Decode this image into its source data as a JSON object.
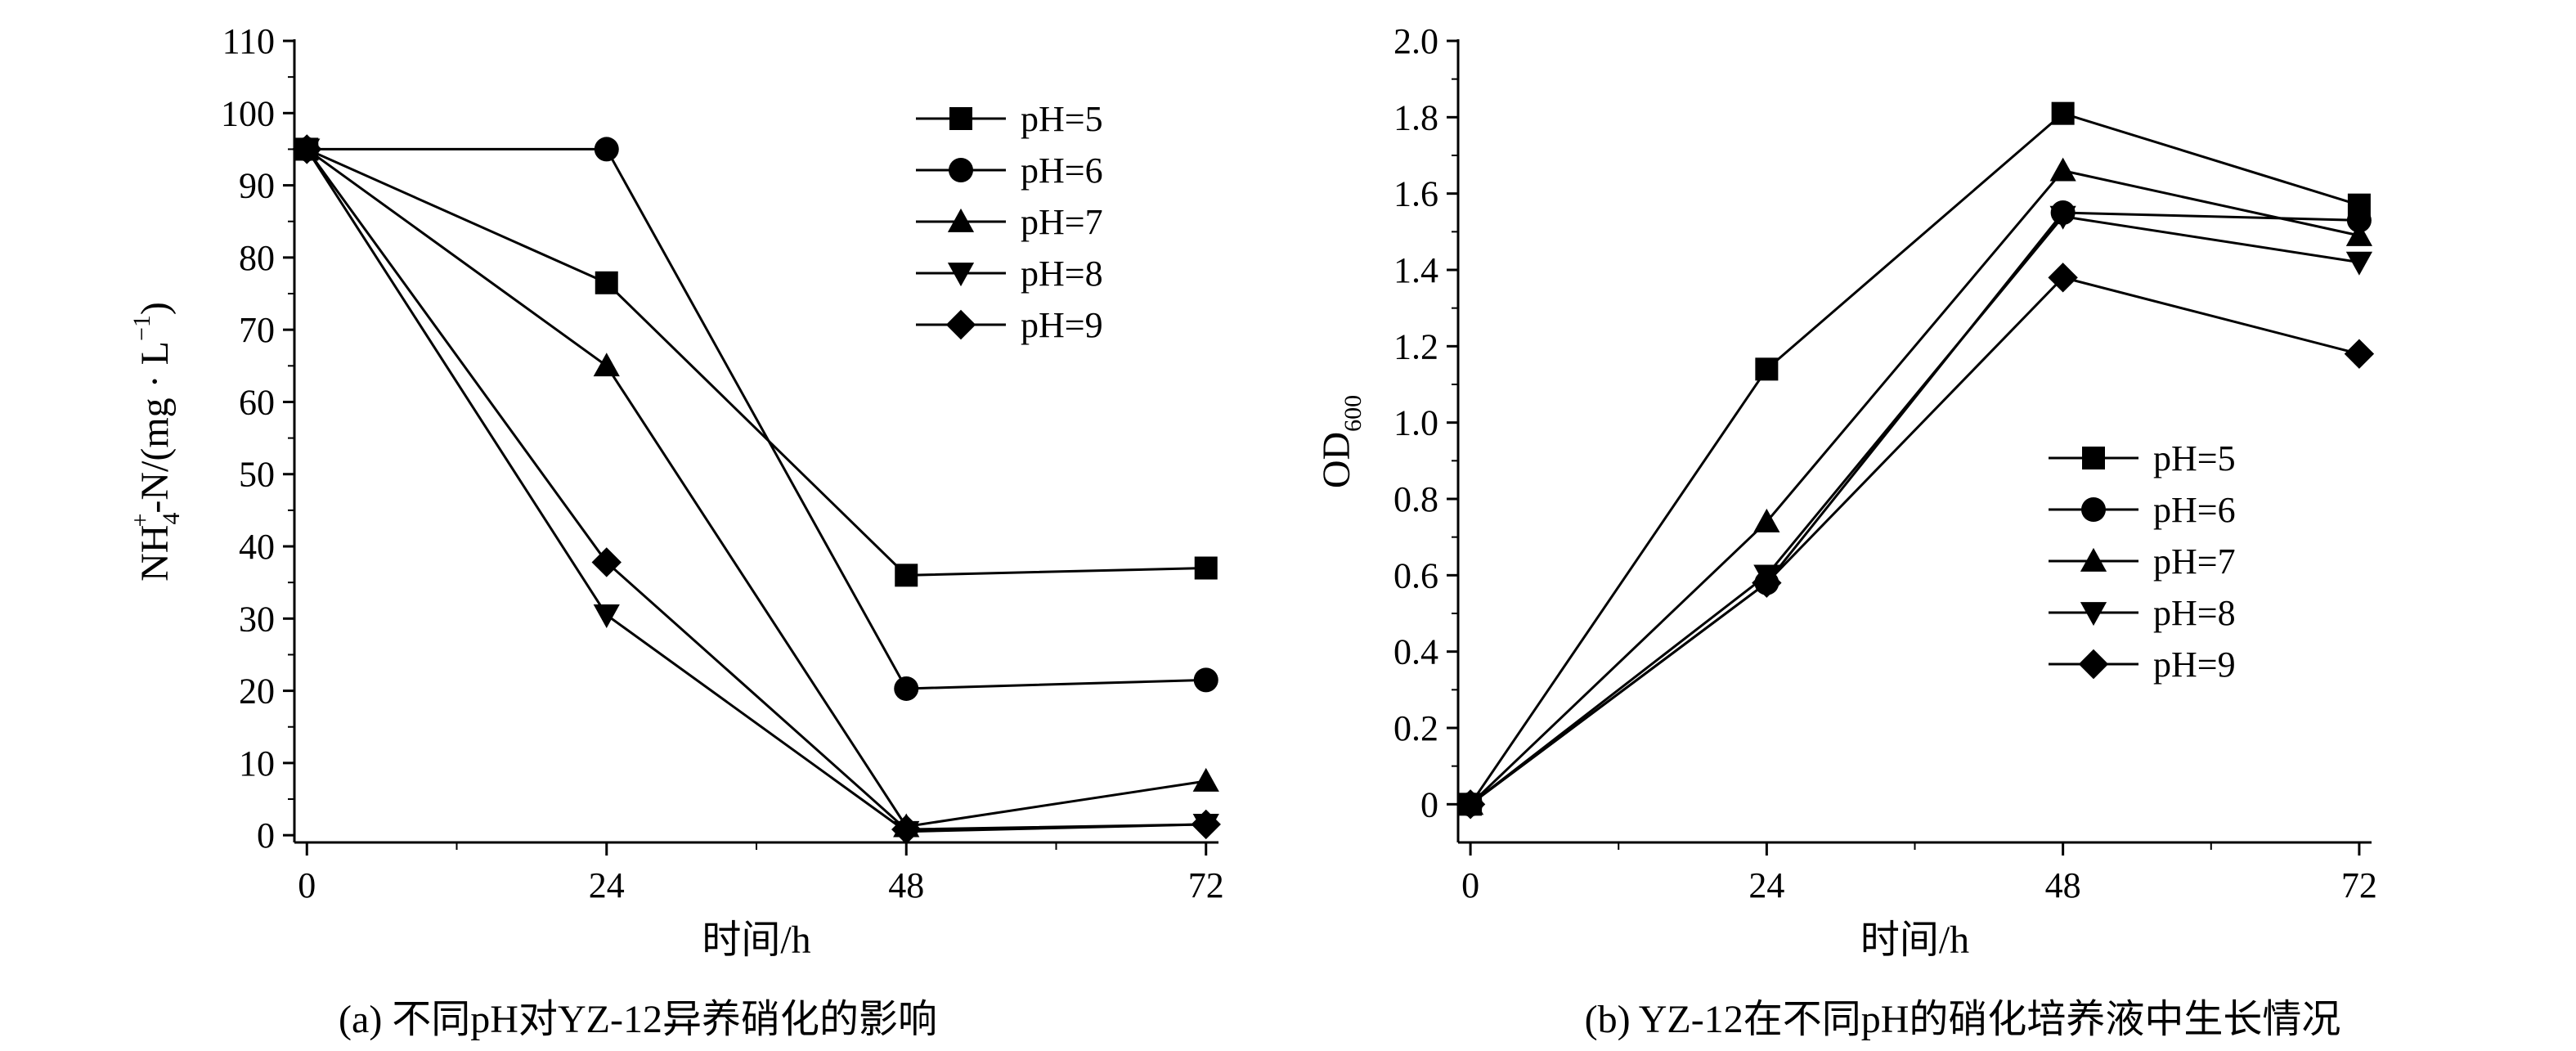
{
  "chart_data": [
    {
      "id": "a",
      "type": "line",
      "caption": "(a) 不同pH对YZ-12异养硝化的影响",
      "xlabel": "时间/h",
      "ylabel_main": "NH",
      "ylabel_sub": "4",
      "ylabel_sup": "+",
      "ylabel_rest": "-N/(mg · L",
      "ylabel_sup2": "−1",
      "ylabel_end": ")",
      "xlim": [
        -1,
        73
      ],
      "ylim": [
        -1,
        110
      ],
      "xticks": [
        0,
        24,
        48,
        72
      ],
      "xtick_labels": [
        "0",
        "24",
        "48",
        "72"
      ],
      "yticks": [
        0,
        10,
        20,
        30,
        40,
        50,
        60,
        70,
        80,
        90,
        100,
        110
      ],
      "ytick_labels": [
        "0",
        "10",
        "20",
        "30",
        "40",
        "50",
        "60",
        "70",
        "80",
        "90",
        "100",
        "110"
      ],
      "legend_position": "top-right",
      "x": [
        0,
        24,
        48,
        72
      ],
      "series": [
        {
          "name": "pH=5",
          "marker": "square",
          "values": [
            95,
            76.5,
            36,
            37
          ]
        },
        {
          "name": "pH=6",
          "marker": "circle",
          "values": [
            95,
            95,
            20.3,
            21.5
          ]
        },
        {
          "name": "pH=7",
          "marker": "triangle-up",
          "values": [
            95,
            65,
            1.2,
            7.5
          ]
        },
        {
          "name": "pH=8",
          "marker": "triangle-down",
          "values": [
            95,
            30.5,
            0.5,
            1.5
          ]
        },
        {
          "name": "pH=9",
          "marker": "diamond",
          "values": [
            95,
            37.8,
            0.8,
            1.5
          ]
        }
      ]
    },
    {
      "id": "b",
      "type": "line",
      "caption": "(b) YZ-12在不同pH的硝化培养液中生长情况",
      "xlabel": "时间/h",
      "ylabel_main": "OD",
      "ylabel_sub": "600",
      "xlim": [
        -1,
        73
      ],
      "ylim": [
        -0.1,
        2.0
      ],
      "xticks": [
        0,
        24,
        48,
        72
      ],
      "xtick_labels": [
        "0",
        "24",
        "48",
        "72"
      ],
      "yticks": [
        0,
        0.2,
        0.4,
        0.6,
        0.8,
        1.0,
        1.2,
        1.4,
        1.6,
        1.8,
        2.0
      ],
      "ytick_labels": [
        "0",
        "0.2",
        "0.4",
        "0.6",
        "0.8",
        "1.0",
        "1.2",
        "1.4",
        "1.6",
        "1.8",
        "2.0"
      ],
      "legend_position": "center-right",
      "x": [
        0,
        24,
        48,
        72
      ],
      "series": [
        {
          "name": "pH=5",
          "marker": "square",
          "values": [
            0,
            1.14,
            1.81,
            1.57
          ]
        },
        {
          "name": "pH=6",
          "marker": "circle",
          "values": [
            0,
            0.58,
            1.55,
            1.53
          ]
        },
        {
          "name": "pH=7",
          "marker": "triangle-up",
          "values": [
            0,
            0.74,
            1.66,
            1.49
          ]
        },
        {
          "name": "pH=8",
          "marker": "triangle-down",
          "values": [
            0,
            0.6,
            1.54,
            1.42
          ]
        },
        {
          "name": "pH=9",
          "marker": "diamond",
          "values": [
            0,
            0.58,
            1.38,
            1.18
          ]
        }
      ]
    }
  ]
}
